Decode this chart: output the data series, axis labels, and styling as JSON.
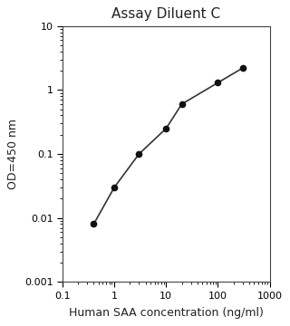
{
  "title": "Assay Diluent C",
  "xlabel": "Human SAA concentration (ng/ml)",
  "ylabel": "OD=450 nm",
  "x_data": [
    0.4,
    1.0,
    3.0,
    10.0,
    20.0,
    100.0,
    300.0
  ],
  "y_data": [
    0.008,
    0.03,
    0.1,
    0.25,
    0.6,
    1.3,
    2.2
  ],
  "xlim": [
    0.1,
    1000
  ],
  "ylim": [
    0.001,
    10
  ],
  "x_major_ticks": [
    0.1,
    1,
    10,
    100,
    1000
  ],
  "x_major_labels": [
    "0.1",
    "1",
    "10",
    "100",
    "1000"
  ],
  "y_major_ticks": [
    0.001,
    0.01,
    0.1,
    1,
    10
  ],
  "y_major_labels": [
    "0.001",
    "0.01",
    "0.1",
    "1",
    "10"
  ],
  "line_color": "#333333",
  "marker_color": "#111111",
  "marker_size": 4.5,
  "line_width": 1.2,
  "background_color": "#ffffff",
  "title_fontsize": 11,
  "label_fontsize": 9,
  "tick_fontsize": 8
}
